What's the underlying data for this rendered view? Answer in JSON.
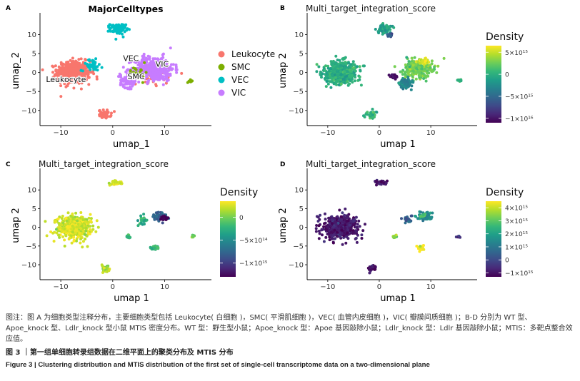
{
  "figure": {
    "panels": [
      {
        "letter": "A",
        "title": "MajorCelltypes",
        "xlabel": "umap_1",
        "ylabel": "umap_2",
        "legend_title": "",
        "legend_labels": [
          "Leukocyte",
          "SMC",
          "VEC",
          "VIC"
        ],
        "cluster_labels": [
          "VEC",
          "VIC",
          "SMC",
          "Leukocyte"
        ]
      },
      {
        "letter": "B",
        "title": "Multi_target_integration_score",
        "xlabel": "umap 1",
        "ylabel": "umap 2",
        "legend_title": "Density",
        "legend_ticks": [
          "5×10¹⁵",
          "0",
          "−5×10¹⁵",
          "−1×10¹⁶"
        ]
      },
      {
        "letter": "C",
        "title": "Multi_target_integration_score",
        "xlabel": "umap 1",
        "ylabel": "umap 2",
        "legend_title": "Density",
        "legend_ticks": [
          "0",
          "−5×10¹⁴",
          "−1×10¹⁵"
        ]
      },
      {
        "letter": "D",
        "title": "Multi_target_integration_score",
        "xlabel": "umap 1",
        "ylabel": "umap 2",
        "legend_title": "Density",
        "legend_ticks": [
          "4×10¹⁵",
          "3×10¹⁵",
          "2×10¹⁵",
          "1×10¹⁵",
          "0",
          "−1×10¹⁵"
        ]
      }
    ]
  },
  "chart_data": [
    {
      "type": "scatter",
      "panel": "A",
      "title": "MajorCelltypes",
      "xlabel": "umap_1",
      "ylabel": "umap_2",
      "xlim": [
        -14,
        19
      ],
      "ylim": [
        -14,
        15
      ],
      "xticks": [
        -10,
        0,
        10
      ],
      "yticks": [
        -10,
        -5,
        0,
        5,
        10
      ],
      "legend_position": "right",
      "colors": {
        "Leukocyte": "#F8766D",
        "SMC": "#7CAE00",
        "VEC": "#00BFC4",
        "VIC": "#C77CFF"
      },
      "clusters": [
        {
          "category": "Leukocyte",
          "center": [
            -7.5,
            0
          ],
          "spread": [
            3.2,
            3.0
          ],
          "n": 520
        },
        {
          "category": "Leukocyte",
          "center": [
            -1.5,
            -11
          ],
          "spread": [
            1.2,
            1.1
          ],
          "n": 45
        },
        {
          "category": "Leukocyte",
          "center": [
            8,
            0
          ],
          "spread": [
            3.5,
            3.2
          ],
          "n": 60
        },
        {
          "category": "VEC",
          "center": [
            1.0,
            11.5
          ],
          "spread": [
            1.5,
            1.4
          ],
          "n": 90
        },
        {
          "category": "VEC",
          "center": [
            -4.0,
            2.0
          ],
          "spread": [
            2.0,
            1.5
          ],
          "n": 40
        },
        {
          "category": "VIC",
          "center": [
            8.0,
            1.0
          ],
          "spread": [
            3.8,
            3.2
          ],
          "n": 420
        },
        {
          "category": "VIC",
          "center": [
            3.0,
            -2.0
          ],
          "spread": [
            1.6,
            2.0
          ],
          "n": 90
        },
        {
          "category": "SMC",
          "center": [
            15.0,
            -2.3
          ],
          "spread": [
            0.35,
            0.35
          ],
          "n": 12
        },
        {
          "category": "SMC",
          "center": [
            5.0,
            0.0
          ],
          "spread": [
            2.0,
            2.0
          ],
          "n": 20
        }
      ]
    },
    {
      "type": "scatter",
      "panel": "B",
      "title": "Multi_target_integration_score",
      "xlabel": "umap 1",
      "ylabel": "umap 2",
      "xlim": [
        -14,
        19
      ],
      "ylim": [
        -14,
        15
      ],
      "xticks": [
        -10,
        0,
        10
      ],
      "yticks": [
        -10,
        -5,
        0,
        5,
        10
      ],
      "colorbar": {
        "title": "Density",
        "min": -1.1e+16,
        "max": 6500000000000000.0,
        "ticks": [
          5000000000000000.0,
          0,
          -5000000000000000.0,
          -1e+16
        ]
      },
      "clusters": [
        {
          "center": [
            -7.5,
            0
          ],
          "spread": [
            3.2,
            3.0
          ],
          "n": 480,
          "value": 0.0
        },
        {
          "center": [
            1.0,
            11.5
          ],
          "spread": [
            1.3,
            1.2
          ],
          "n": 80,
          "value": -1000000000000000.0
        },
        {
          "center": [
            2.0,
            10.0
          ],
          "spread": [
            0.4,
            0.4
          ],
          "n": 15,
          "value": -6000000000000000.0
        },
        {
          "center": [
            7.5,
            1.0
          ],
          "spread": [
            2.8,
            2.5
          ],
          "n": 260,
          "value": 2500000000000000.0
        },
        {
          "center": [
            8.5,
            3.0
          ],
          "spread": [
            1.0,
            0.8
          ],
          "n": 50,
          "value": 6000000000000000.0
        },
        {
          "center": [
            3.0,
            -1.0
          ],
          "spread": [
            0.8,
            0.8
          ],
          "n": 30,
          "value": -1.05e+16
        },
        {
          "center": [
            5.0,
            -3.0
          ],
          "spread": [
            1.5,
            1.5
          ],
          "n": 60,
          "value": -3000000000000000.0
        },
        {
          "center": [
            15.5,
            -2.0
          ],
          "spread": [
            0.4,
            0.3
          ],
          "n": 12,
          "value": 0.0
        },
        {
          "center": [
            -1.5,
            -11.0
          ],
          "spread": [
            1.0,
            1.0
          ],
          "n": 35,
          "value": 0.0
        }
      ]
    },
    {
      "type": "scatter",
      "panel": "C",
      "title": "Multi_target_integration_score",
      "xlabel": "umap 1",
      "ylabel": "umap 2",
      "xlim": [
        -14,
        19
      ],
      "ylim": [
        -14,
        15
      ],
      "xticks": [
        -10,
        0,
        10
      ],
      "yticks": [
        -10,
        -5,
        0,
        5,
        10
      ],
      "colorbar": {
        "title": "Density",
        "min": -1300000000000000.0,
        "max": 350000000000000.0,
        "ticks": [
          0,
          -500000000000000.0,
          -1000000000000000.0
        ]
      },
      "clusters": [
        {
          "center": [
            -7.5,
            0
          ],
          "spread": [
            3.2,
            3.0
          ],
          "n": 480,
          "value": 250000000000000.0
        },
        {
          "center": [
            0.5,
            12.0
          ],
          "spread": [
            1.2,
            0.6
          ],
          "n": 40,
          "value": 250000000000000.0
        },
        {
          "center": [
            -1.5,
            -11.0
          ],
          "spread": [
            0.9,
            1.0
          ],
          "n": 30,
          "value": 150000000000000.0
        },
        {
          "center": [
            9.0,
            3.0
          ],
          "spread": [
            1.3,
            1.0
          ],
          "n": 70,
          "value": -800000000000000.0
        },
        {
          "center": [
            10.0,
            2.5
          ],
          "spread": [
            0.6,
            0.6
          ],
          "n": 25,
          "value": -1300000000000000.0
        },
        {
          "center": [
            8.0,
            -5.5
          ],
          "spread": [
            0.7,
            0.6
          ],
          "n": 25,
          "value": -200000000000000.0
        },
        {
          "center": [
            3.0,
            -2.5
          ],
          "spread": [
            0.5,
            0.5
          ],
          "n": 12,
          "value": -200000000000000.0
        },
        {
          "center": [
            15.5,
            -2.5
          ],
          "spread": [
            0.4,
            0.3
          ],
          "n": 8,
          "value": 0.0
        },
        {
          "center": [
            5.5,
            2.0
          ],
          "spread": [
            1.2,
            1.5
          ],
          "n": 20,
          "value": -300000000000000.0
        }
      ]
    },
    {
      "type": "scatter",
      "panel": "D",
      "title": "Multi_target_integration_score",
      "xlabel": "umap 1",
      "ylabel": "umap 2",
      "xlim": [
        -14,
        19
      ],
      "ylim": [
        -14,
        15
      ],
      "xticks": [
        -10,
        0,
        10
      ],
      "yticks": [
        -10,
        -5,
        0,
        5,
        10
      ],
      "colorbar": {
        "title": "Density",
        "min": -1300000000000000.0,
        "max": 4500000000000000.0,
        "ticks": [
          4000000000000000.0,
          3000000000000000.0,
          2000000000000000.0,
          1000000000000000.0,
          0,
          -1000000000000000.0
        ]
      },
      "clusters": [
        {
          "center": [
            -7.5,
            0
          ],
          "spread": [
            3.2,
            3.0
          ],
          "n": 480,
          "value": -900000000000000.0
        },
        {
          "center": [
            0.5,
            12.0
          ],
          "spread": [
            1.2,
            0.6
          ],
          "n": 40,
          "value": -900000000000000.0
        },
        {
          "center": [
            -1.5,
            -11.0
          ],
          "spread": [
            0.9,
            1.0
          ],
          "n": 30,
          "value": -900000000000000.0
        },
        {
          "center": [
            9.0,
            3.0
          ],
          "spread": [
            1.3,
            1.0
          ],
          "n": 70,
          "value": 1500000000000000.0
        },
        {
          "center": [
            8.5,
            3.2
          ],
          "spread": [
            0.5,
            0.4
          ],
          "n": 15,
          "value": 3000000000000000.0
        },
        {
          "center": [
            8.0,
            -5.5
          ],
          "spread": [
            0.6,
            0.6
          ],
          "n": 25,
          "value": 4500000000000000.0
        },
        {
          "center": [
            3.0,
            -2.5
          ],
          "spread": [
            0.5,
            0.5
          ],
          "n": 14,
          "value": 3500000000000000.0
        },
        {
          "center": [
            15.5,
            -2.5
          ],
          "spread": [
            0.4,
            0.3
          ],
          "n": 8,
          "value": -500000000000000.0
        },
        {
          "center": [
            5.5,
            2.0
          ],
          "spread": [
            1.2,
            1.5
          ],
          "n": 20,
          "value": 500000000000000.0
        }
      ]
    }
  ],
  "caption": {
    "note": "图注：图 A 为细胞类型注释分布，主要细胞类型包括 Leukocyte( 白细胞 )，SMC( 平滑肌细胞 )，VEC( 血管内皮细胞 )，VIC( 瓣膜间质细胞 )；B-D 分别为 WT 型、Apoe_knock 型、Ldlr_knock 型小鼠 MTIS 密度分布。WT 型：野生型小鼠；Apoe_knock 型：Apoe 基因敲除小鼠；Ldlr_knock 型：Ldlr 基因敲除小鼠；MTIS：多靶点整合效应值。",
    "title_zh": "图 3 ｜第一组单细胞转录组数据在二维平面上的聚类分布及 MTIS 分布",
    "title_en": "Figure 3  |  Clustering distribution and MTIS distribution of the first set of single-cell transcriptome data on a two-dimensional plane"
  }
}
